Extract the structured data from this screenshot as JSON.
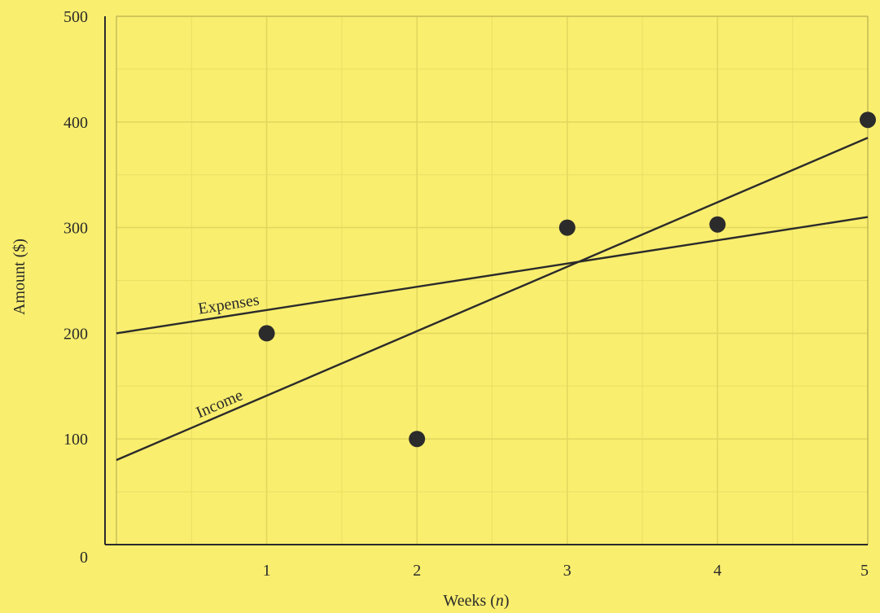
{
  "chart_data": {
    "type": "scatter",
    "xlabel_prefix": "Weeks (",
    "xlabel_var": "n",
    "xlabel_suffix": ")",
    "ylabel": "Amount ($)",
    "xlim": [
      0,
      5
    ],
    "ylim": [
      0,
      500
    ],
    "x_ticks": [
      1,
      2,
      3,
      4,
      5
    ],
    "y_ticks": [
      0,
      100,
      200,
      300,
      400,
      500
    ],
    "x_minor_step": 0.5,
    "y_minor_step": 50,
    "grid": true,
    "points": [
      {
        "x": 1,
        "y": 200
      },
      {
        "x": 2,
        "y": 100
      },
      {
        "x": 3,
        "y": 300
      },
      {
        "x": 4,
        "y": 303
      },
      {
        "x": 5,
        "y": 402
      }
    ],
    "lines": [
      {
        "label": "Expenses",
        "intercept": 200,
        "slope": 22
      },
      {
        "label": "Income",
        "intercept": 80,
        "slope": 61
      }
    ],
    "colors": {
      "background": "#f9ee6e",
      "ink": "#2b2b2b"
    }
  }
}
